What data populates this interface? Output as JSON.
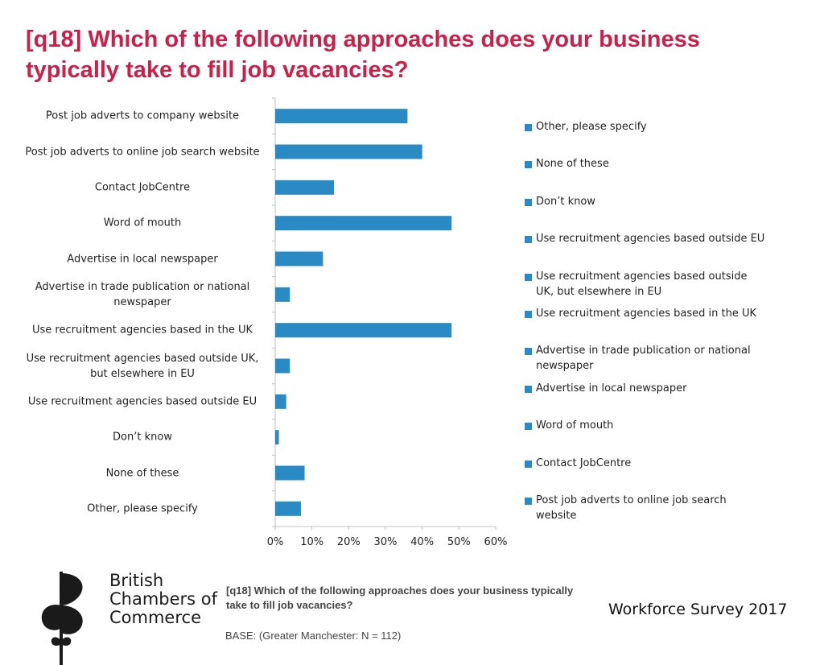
{
  "title": "[q18] Which of the following approaches does your business typically take to fill job vacancies?",
  "chart_data": {
    "type": "bar",
    "orientation": "horizontal",
    "categories": [
      "Post job adverts to company website",
      "Post job adverts to online job search website",
      "Contact JobCentre",
      "Word of mouth",
      "Advertise in local newspaper",
      "Advertise in trade publication or national newspaper",
      "Use recruitment agencies based in the UK",
      "Use recruitment agencies based outside UK, but elsewhere in EU",
      "Use recruitment agencies based outside EU",
      "Don’t know",
      "None of these",
      "Other, please specify"
    ],
    "values": [
      36,
      40,
      16,
      48,
      13,
      4,
      48,
      4,
      3,
      1,
      8,
      7
    ],
    "xlim": [
      0,
      60
    ],
    "xticks": [
      0,
      10,
      20,
      30,
      40,
      50,
      60
    ],
    "tick_format": "percent",
    "bar_color": "#2a8bc4",
    "legend_position": "right",
    "legend": [
      "Other, please specify",
      "None of these",
      "Don’t know",
      "Use recruitment agencies based outside EU",
      "Use recruitment agencies based outside UK, but elsewhere in EU",
      "Use recruitment agencies based in the UK",
      "Advertise in trade publication or national newspaper",
      "Advertise in local newspaper",
      "Word of mouth",
      "Contact JobCentre",
      "Post job adverts to online job search website"
    ]
  },
  "footer": {
    "question": "[q18] Which of the following approaches does your business typically take to fill job vacancies?",
    "base": "BASE: (Greater Manchester: N = 112)",
    "survey": "Workforce Survey 2017"
  },
  "logo": {
    "line1": "British",
    "line2": "Chambers of",
    "line3": "Commerce"
  },
  "colors": {
    "title": "#cc1f47",
    "bar": "#2a8bc4",
    "axis": "#bfbfbf"
  }
}
